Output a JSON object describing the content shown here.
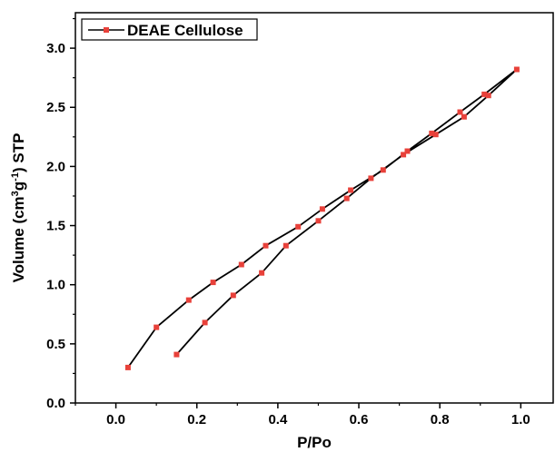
{
  "chart_data": {
    "type": "line",
    "title": "",
    "xlabel": "P/Po",
    "ylabel_main": "Volume (cm",
    "ylabel_sup1": "3",
    "ylabel_mid": "g",
    "ylabel_sup2": "-1",
    "ylabel_end": ") STP",
    "xlim": [
      -0.1,
      1.08
    ],
    "ylim": [
      0.0,
      3.3
    ],
    "xticks": [
      0.0,
      0.2,
      0.4,
      0.6,
      0.8,
      1.0
    ],
    "xtick_labels": [
      "0.0",
      "0.2",
      "0.4",
      "0.6",
      "0.8",
      "1.0"
    ],
    "yticks": [
      0.0,
      0.5,
      1.0,
      1.5,
      2.0,
      2.5,
      3.0
    ],
    "ytick_labels": [
      "0.0",
      "0.5",
      "1.0",
      "1.5",
      "2.0",
      "2.5",
      "3.0"
    ],
    "legend_position": "top-left",
    "grid": false,
    "colors": {
      "line": "#000000",
      "marker": "#e8413a",
      "axis": "#000000"
    },
    "series": [
      {
        "name": "DEAE Cellulose",
        "points": [
          {
            "x": 0.03,
            "y": 0.3
          },
          {
            "x": 0.1,
            "y": 0.64
          },
          {
            "x": 0.18,
            "y": 0.87
          },
          {
            "x": 0.24,
            "y": 1.02
          },
          {
            "x": 0.31,
            "y": 1.17
          },
          {
            "x": 0.37,
            "y": 1.33
          },
          {
            "x": 0.45,
            "y": 1.49
          },
          {
            "x": 0.51,
            "y": 1.64
          },
          {
            "x": 0.58,
            "y": 1.8
          },
          {
            "x": 0.66,
            "y": 1.97
          },
          {
            "x": 0.72,
            "y": 2.13
          },
          {
            "x": 0.78,
            "y": 2.28
          },
          {
            "x": 0.85,
            "y": 2.46
          },
          {
            "x": 0.91,
            "y": 2.61
          },
          {
            "x": 0.99,
            "y": 2.82
          },
          {
            "x": 0.92,
            "y": 2.6
          },
          {
            "x": 0.86,
            "y": 2.42
          },
          {
            "x": 0.79,
            "y": 2.27
          },
          {
            "x": 0.71,
            "y": 2.1
          },
          {
            "x": 0.63,
            "y": 1.9
          },
          {
            "x": 0.57,
            "y": 1.73
          },
          {
            "x": 0.5,
            "y": 1.54
          },
          {
            "x": 0.42,
            "y": 1.33
          },
          {
            "x": 0.36,
            "y": 1.1
          },
          {
            "x": 0.29,
            "y": 0.91
          },
          {
            "x": 0.22,
            "y": 0.68
          },
          {
            "x": 0.15,
            "y": 0.41
          }
        ]
      }
    ]
  }
}
